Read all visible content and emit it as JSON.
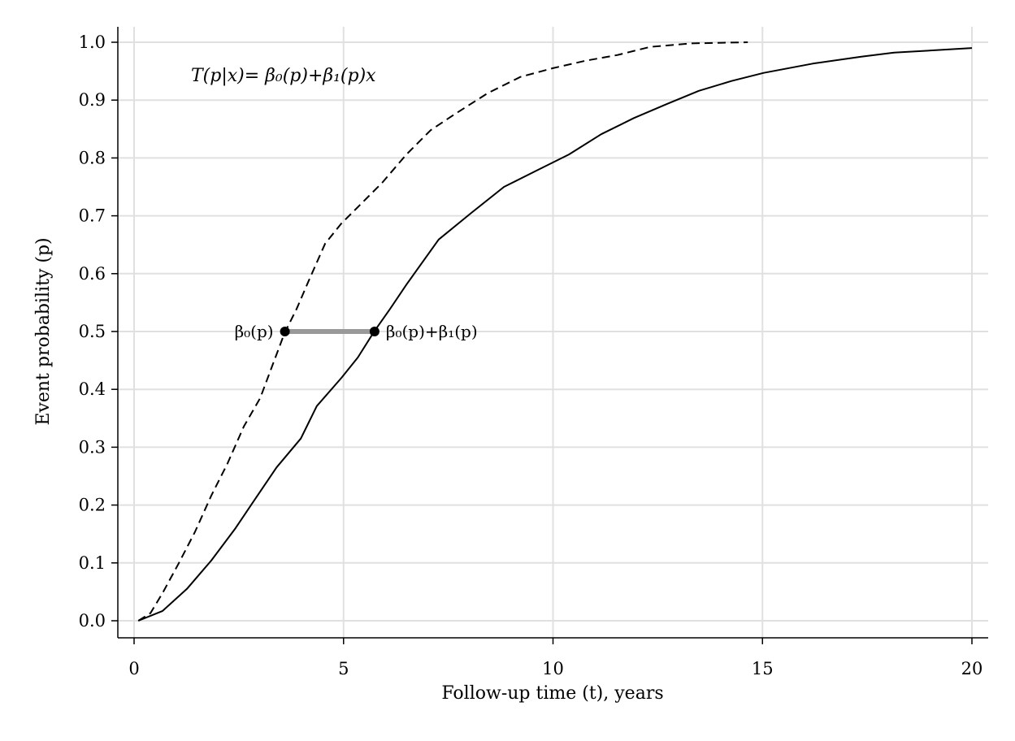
{
  "chart_data": {
    "type": "line",
    "xlabel": "Follow-up time (t), years",
    "ylabel": "Event probability (p)",
    "xlim": [
      0,
      20
    ],
    "ylim": [
      0,
      1
    ],
    "xticks": [
      "0",
      "5",
      "10",
      "15",
      "20"
    ],
    "yticks": [
      "0.0",
      "0.1",
      "0.2",
      "0.3",
      "0.4",
      "0.5",
      "0.6",
      "0.7",
      "0.8",
      "0.9",
      "1.0"
    ],
    "grid": true,
    "annotation": "T(p|x)= β₀(p)+β₁(p)x",
    "series": [
      {
        "style": "dashed",
        "color": "#000000",
        "x": [
          0.1,
          0.39,
          0.68,
          1.07,
          1.45,
          1.84,
          2.23,
          2.62,
          3.01,
          3.3,
          3.59,
          3.88,
          4.17,
          4.56,
          4.95,
          5.34,
          5.92,
          6.5,
          7.08,
          7.66,
          8.44,
          9.22,
          9.99,
          10.77,
          11.54,
          12.32,
          13.29,
          14.65
        ],
        "y": [
          0,
          0.013,
          0.048,
          0.1,
          0.153,
          0.216,
          0.272,
          0.336,
          0.385,
          0.441,
          0.497,
          0.539,
          0.588,
          0.652,
          0.687,
          0.715,
          0.757,
          0.806,
          0.848,
          0.876,
          0.912,
          0.94,
          0.955,
          0.968,
          0.978,
          0.992,
          0.998,
          1.0
        ]
      },
      {
        "style": "solid",
        "color": "#000000",
        "x": [
          0.1,
          0.68,
          1.26,
          1.84,
          2.42,
          2.81,
          3.4,
          3.98,
          4.36,
          4.95,
          5.34,
          5.74,
          6.11,
          6.5,
          7.27,
          8.05,
          8.83,
          9.6,
          10.38,
          11.15,
          11.93,
          12.71,
          13.48,
          14.26,
          15.03,
          16.2,
          17.36,
          18.14,
          20
        ],
        "y": [
          0,
          0.017,
          0.055,
          0.104,
          0.16,
          0.202,
          0.265,
          0.315,
          0.371,
          0.42,
          0.455,
          0.501,
          0.539,
          0.581,
          0.659,
          0.705,
          0.75,
          0.778,
          0.806,
          0.841,
          0.869,
          0.893,
          0.916,
          0.933,
          0.947,
          0.963,
          0.975,
          0.982,
          0.99
        ]
      }
    ],
    "markers": [
      {
        "x": 3.6,
        "y": 0.5,
        "label": "β₀(p)"
      },
      {
        "x": 5.74,
        "y": 0.5,
        "label": "β₀(p)+β₁(p)"
      }
    ],
    "segment_color": "#999999",
    "grid_color": "#e0e0e0"
  }
}
